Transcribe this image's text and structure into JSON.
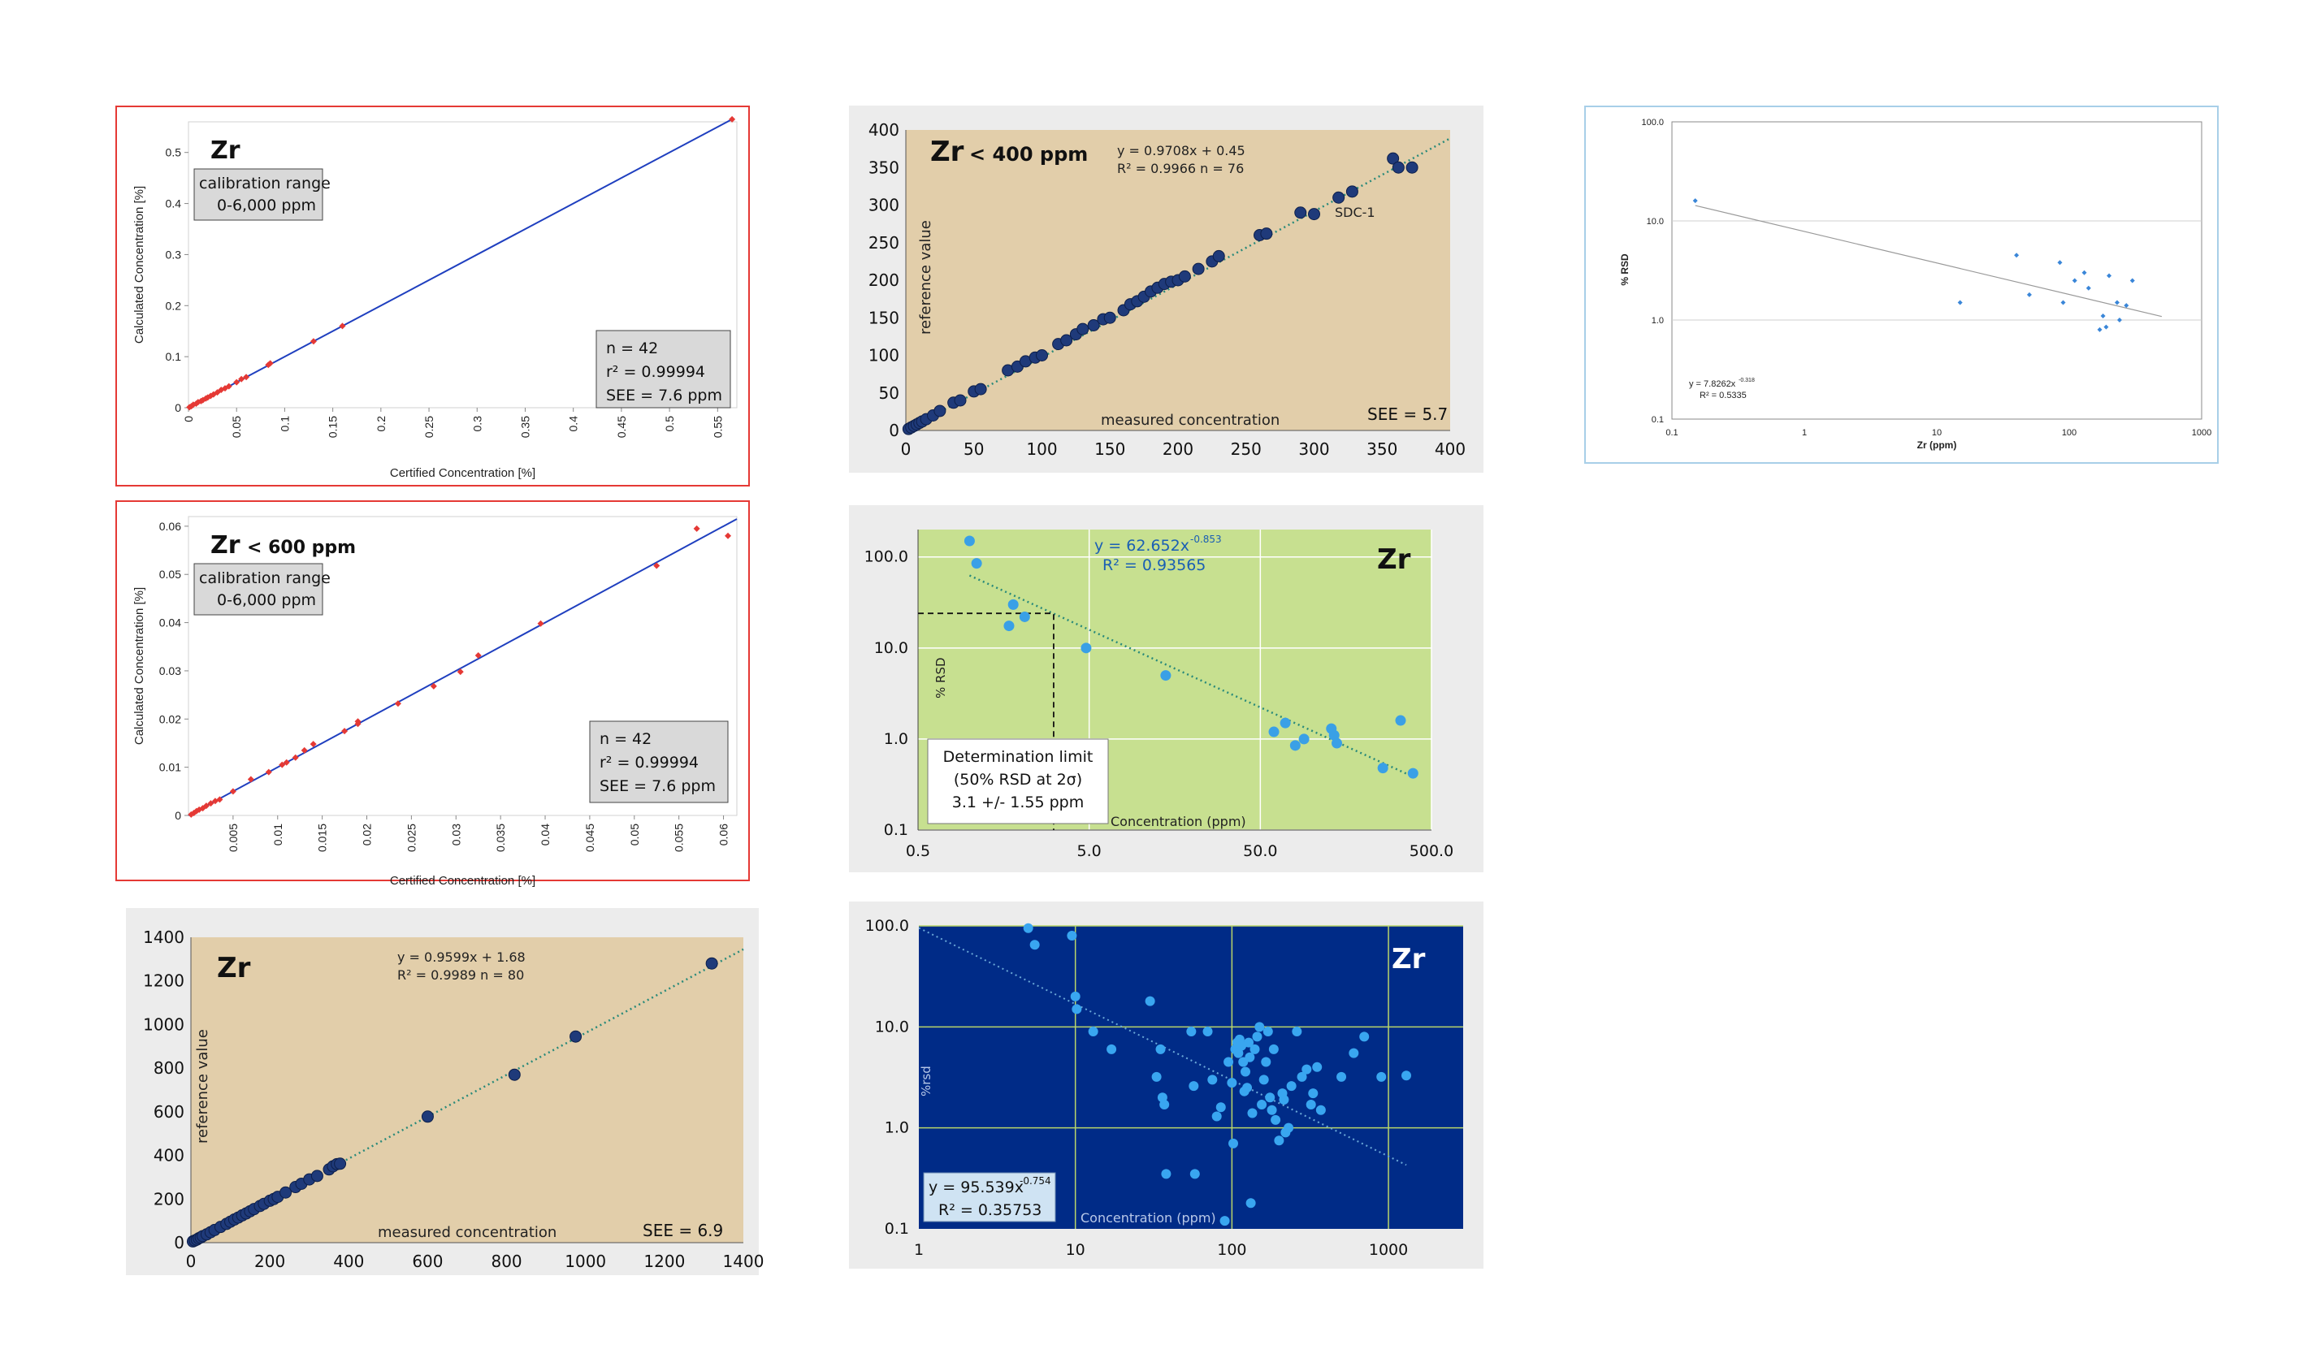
{
  "colors": {
    "red_marker": "#e53935",
    "blue_line": "#1f3fbf",
    "tan_bg": "#e2ceaa",
    "navy_point": "#1f3a7a",
    "green_bg": "#c7e090",
    "light_blue_point": "#3aa0e6",
    "dark_blue_bg": "#002b87",
    "teal_trend": "#2a8a7a"
  },
  "chart_data": [
    {
      "id": "p1",
      "type": "scatter",
      "title": "Zr",
      "calibration_box": [
        "calibration range",
        "0-6,000 ppm"
      ],
      "stats_box": [
        "n = 42",
        "r² = 0.99994",
        "SEE = 7.6 ppm"
      ],
      "xlabel": "Certified Concentration [%]",
      "ylabel": "Calculated Concentration [%]",
      "xlim": [
        0,
        0.57
      ],
      "ylim": [
        0,
        0.56
      ],
      "xticks": [
        "0",
        "0.05",
        "0.1",
        "0.15",
        "0.2",
        "0.25",
        "0.3",
        "0.35",
        "0.4",
        "0.45",
        "0.5",
        "0.55"
      ],
      "yticks": [
        "0",
        "0.1",
        "0.2",
        "0.3",
        "0.4",
        "0.5"
      ],
      "trendline": [
        [
          0,
          0
        ],
        [
          0.565,
          0.565
        ]
      ],
      "points": [
        [
          0.001,
          0.001
        ],
        [
          0.003,
          0.003
        ],
        [
          0.005,
          0.006
        ],
        [
          0.008,
          0.008
        ],
        [
          0.01,
          0.011
        ],
        [
          0.013,
          0.013
        ],
        [
          0.015,
          0.015
        ],
        [
          0.018,
          0.018
        ],
        [
          0.02,
          0.02
        ],
        [
          0.023,
          0.023
        ],
        [
          0.026,
          0.026
        ],
        [
          0.03,
          0.03
        ],
        [
          0.034,
          0.035
        ],
        [
          0.038,
          0.038
        ],
        [
          0.042,
          0.042
        ],
        [
          0.05,
          0.05
        ],
        [
          0.055,
          0.056
        ],
        [
          0.06,
          0.06
        ],
        [
          0.083,
          0.084
        ],
        [
          0.085,
          0.087
        ],
        [
          0.13,
          0.13
        ],
        [
          0.16,
          0.16
        ],
        [
          0.565,
          0.565
        ]
      ]
    },
    {
      "id": "p2",
      "type": "scatter",
      "title": "Zr",
      "subtitle": "< 600 ppm",
      "calibration_box": [
        "calibration range",
        "0-6,000 ppm"
      ],
      "stats_box": [
        "n = 42",
        "r² = 0.99994",
        "SEE = 7.6 ppm"
      ],
      "xlabel": "Certified Concentration [%]",
      "ylabel": "Calculated Concentration [%]",
      "xlim": [
        0,
        0.0615
      ],
      "ylim": [
        0,
        0.062
      ],
      "xticks": [
        "0.005",
        "0.01",
        "0.015",
        "0.02",
        "0.025",
        "0.03",
        "0.035",
        "0.04",
        "0.045",
        "0.05",
        "0.055",
        "0.06"
      ],
      "yticks": [
        "0",
        "0.01",
        "0.02",
        "0.03",
        "0.04",
        "0.05",
        "0.06"
      ],
      "trendline": [
        [
          0,
          0
        ],
        [
          0.0615,
          0.0615
        ]
      ],
      "points": [
        [
          0.0003,
          0.0002
        ],
        [
          0.0006,
          0.0005
        ],
        [
          0.0009,
          0.0009
        ],
        [
          0.0012,
          0.0012
        ],
        [
          0.0016,
          0.0015
        ],
        [
          0.002,
          0.002
        ],
        [
          0.0025,
          0.0025
        ],
        [
          0.003,
          0.003
        ],
        [
          0.0035,
          0.0033
        ],
        [
          0.005,
          0.005
        ],
        [
          0.007,
          0.0075
        ],
        [
          0.009,
          0.009
        ],
        [
          0.0105,
          0.0105
        ],
        [
          0.011,
          0.011
        ],
        [
          0.012,
          0.012
        ],
        [
          0.013,
          0.0135
        ],
        [
          0.014,
          0.0148
        ],
        [
          0.0175,
          0.0175
        ],
        [
          0.019,
          0.0195
        ],
        [
          0.019,
          0.019
        ],
        [
          0.0235,
          0.0232
        ],
        [
          0.0275,
          0.0268
        ],
        [
          0.0305,
          0.0298
        ],
        [
          0.0325,
          0.0332
        ],
        [
          0.0395,
          0.0398
        ],
        [
          0.0525,
          0.0518
        ],
        [
          0.057,
          0.0595
        ],
        [
          0.0605,
          0.058
        ]
      ]
    },
    {
      "id": "p3",
      "type": "scatter",
      "title": "Zr",
      "equation": [
        "y = 0.9599x + 1.68",
        "R² = 0.9989   n = 80"
      ],
      "xlabel": "measured concentration",
      "ylabel": "reference value",
      "see": "SEE = 6.9",
      "xlim": [
        0,
        1400
      ],
      "ylim": [
        0,
        1400
      ],
      "xticks": [
        "0",
        "200",
        "400",
        "600",
        "800",
        "1000",
        "1200",
        "1400"
      ],
      "yticks": [
        "0",
        "200",
        "400",
        "600",
        "800",
        "1000",
        "1200",
        "1400"
      ],
      "trendline": [
        [
          0,
          1.68
        ],
        [
          1400,
          1345
        ]
      ],
      "points": [
        [
          5,
          6
        ],
        [
          10,
          10
        ],
        [
          15,
          14
        ],
        [
          20,
          20
        ],
        [
          25,
          24
        ],
        [
          30,
          30
        ],
        [
          40,
          38
        ],
        [
          50,
          48
        ],
        [
          60,
          58
        ],
        [
          75,
          72
        ],
        [
          90,
          86
        ],
        [
          100,
          96
        ],
        [
          110,
          106
        ],
        [
          120,
          115
        ],
        [
          130,
          125
        ],
        [
          140,
          134
        ],
        [
          150,
          144
        ],
        [
          160,
          154
        ],
        [
          175,
          168
        ],
        [
          185,
          178
        ],
        [
          200,
          192
        ],
        [
          210,
          200
        ],
        [
          220,
          210
        ],
        [
          240,
          230
        ],
        [
          265,
          255
        ],
        [
          280,
          270
        ],
        [
          300,
          290
        ],
        [
          320,
          306
        ],
        [
          350,
          336
        ],
        [
          360,
          350
        ],
        [
          370,
          360
        ],
        [
          378,
          362
        ],
        [
          600,
          578
        ],
        [
          820,
          770
        ],
        [
          975,
          945
        ],
        [
          1320,
          1280
        ]
      ]
    },
    {
      "id": "p4",
      "type": "scatter",
      "title": "Zr",
      "subtitle": "< 400 ppm",
      "equation": [
        "y = 0.9708x + 0.45",
        "R² = 0.9966   n = 76"
      ],
      "xlabel": "measured concentration",
      "ylabel": "reference value",
      "see": "SEE = 5.7",
      "annotation": "SDC-1",
      "xlim": [
        0,
        400
      ],
      "ylim": [
        0,
        400
      ],
      "xticks": [
        "0",
        "50",
        "100",
        "150",
        "200",
        "250",
        "300",
        "350",
        "400"
      ],
      "yticks": [
        "0",
        "50",
        "100",
        "150",
        "200",
        "250",
        "300",
        "350",
        "400"
      ],
      "trendline": [
        [
          0,
          0.45
        ],
        [
          400,
          388.8
        ]
      ],
      "points": [
        [
          2,
          2
        ],
        [
          4,
          4
        ],
        [
          6,
          6
        ],
        [
          8,
          8
        ],
        [
          10,
          10
        ],
        [
          12,
          12
        ],
        [
          15,
          15
        ],
        [
          20,
          20
        ],
        [
          25,
          26
        ],
        [
          35,
          37
        ],
        [
          40,
          40
        ],
        [
          50,
          52
        ],
        [
          55,
          55
        ],
        [
          75,
          80
        ],
        [
          82,
          85
        ],
        [
          88,
          92
        ],
        [
          95,
          97
        ],
        [
          100,
          100
        ],
        [
          112,
          115
        ],
        [
          118,
          120
        ],
        [
          125,
          128
        ],
        [
          130,
          135
        ],
        [
          138,
          140
        ],
        [
          145,
          148
        ],
        [
          150,
          150
        ],
        [
          160,
          160
        ],
        [
          165,
          168
        ],
        [
          170,
          172
        ],
        [
          175,
          178
        ],
        [
          180,
          185
        ],
        [
          185,
          190
        ],
        [
          190,
          195
        ],
        [
          195,
          198
        ],
        [
          200,
          200
        ],
        [
          205,
          205
        ],
        [
          215,
          215
        ],
        [
          225,
          225
        ],
        [
          230,
          232
        ],
        [
          260,
          260
        ],
        [
          265,
          262
        ],
        [
          290,
          290
        ],
        [
          300,
          288
        ],
        [
          318,
          310
        ],
        [
          328,
          318
        ],
        [
          358,
          362
        ],
        [
          362,
          350
        ],
        [
          372,
          350
        ]
      ]
    },
    {
      "id": "p5",
      "type": "scatter",
      "scale": "log-log",
      "title": "Zr",
      "equation": [
        "y = 62.652x",
        "-0.853",
        "R² = 0.93565"
      ],
      "box": [
        "Determination limit",
        "(50% RSD at 2σ)",
        "3.1 +/- 1.55 ppm"
      ],
      "xlabel": "Concentration (ppm)",
      "ylabel": "% RSD",
      "xlim": [
        0.5,
        500
      ],
      "ylim": [
        0.1,
        200
      ],
      "xticks": [
        "0.5",
        "5.0",
        "50.0",
        "500.0"
      ],
      "yticks": [
        "0.1",
        "1.0",
        "10.0",
        "100.0"
      ],
      "points": [
        [
          1.0,
          150
        ],
        [
          1.1,
          85
        ],
        [
          1.8,
          30
        ],
        [
          1.7,
          17.5
        ],
        [
          2.1,
          22
        ],
        [
          4.8,
          10
        ],
        [
          14,
          5
        ],
        [
          60,
          1.2
        ],
        [
          70,
          1.5
        ],
        [
          80,
          0.85
        ],
        [
          90,
          1.0
        ],
        [
          130,
          1.3
        ],
        [
          135,
          1.1
        ],
        [
          140,
          0.9
        ],
        [
          260,
          0.48
        ],
        [
          330,
          1.6
        ],
        [
          390,
          0.42
        ]
      ]
    },
    {
      "id": "p6",
      "type": "scatter",
      "scale": "log-log",
      "title": "Zr",
      "equation": [
        "y = 95.539x",
        "-0.754",
        "R² = 0.35753"
      ],
      "xlabel": "Concentration (ppm)",
      "ylabel": "%rsd",
      "xlim": [
        1,
        3000
      ],
      "ylim": [
        0.1,
        100
      ],
      "xticks": [
        "1",
        "10",
        "100",
        "1000"
      ],
      "yticks": [
        "0.1",
        "1.0",
        "10.0",
        "100.0"
      ],
      "points": [
        [
          5,
          95
        ],
        [
          5.5,
          65
        ],
        [
          9.5,
          80
        ],
        [
          10,
          20
        ],
        [
          10.2,
          15
        ],
        [
          13,
          9
        ],
        [
          17,
          6
        ],
        [
          30,
          18
        ],
        [
          33,
          3.2
        ],
        [
          35,
          6
        ],
        [
          36,
          2
        ],
        [
          37,
          1.7
        ],
        [
          38,
          0.35
        ],
        [
          55,
          9
        ],
        [
          57,
          2.6
        ],
        [
          58,
          0.35
        ],
        [
          70,
          9
        ],
        [
          75,
          3
        ],
        [
          80,
          1.3
        ],
        [
          85,
          1.6
        ],
        [
          90,
          0.12
        ],
        [
          95,
          4.5
        ],
        [
          100,
          2.8
        ],
        [
          102,
          0.7
        ],
        [
          105,
          6
        ],
        [
          108,
          7
        ],
        [
          110,
          5.5
        ],
        [
          112,
          7.5
        ],
        [
          115,
          6.5
        ],
        [
          118,
          4.5
        ],
        [
          120,
          2.3
        ],
        [
          122,
          3.6
        ],
        [
          125,
          2.5
        ],
        [
          128,
          7
        ],
        [
          130,
          5
        ],
        [
          132,
          0.18
        ],
        [
          135,
          1.4
        ],
        [
          140,
          6
        ],
        [
          145,
          8
        ],
        [
          150,
          10
        ],
        [
          155,
          1.7
        ],
        [
          160,
          3
        ],
        [
          165,
          4.5
        ],
        [
          170,
          9
        ],
        [
          175,
          2
        ],
        [
          180,
          1.5
        ],
        [
          185,
          6
        ],
        [
          190,
          1.2
        ],
        [
          200,
          0.75
        ],
        [
          210,
          2.2
        ],
        [
          215,
          1.9
        ],
        [
          220,
          0.9
        ],
        [
          230,
          1.0
        ],
        [
          240,
          2.6
        ],
        [
          260,
          9
        ],
        [
          280,
          3.2
        ],
        [
          300,
          3.8
        ],
        [
          320,
          1.7
        ],
        [
          330,
          2.2
        ],
        [
          350,
          4
        ],
        [
          370,
          1.5
        ],
        [
          500,
          3.2
        ],
        [
          600,
          5.5
        ],
        [
          700,
          8
        ],
        [
          900,
          3.2
        ],
        [
          1300,
          3.3
        ]
      ]
    },
    {
      "id": "p7",
      "type": "scatter",
      "scale": "log-log",
      "equation": [
        "y = 7.8262x",
        "-0.318",
        "R² = 0.5335"
      ],
      "xlabel": "Zr (ppm)",
      "ylabel": "% RSD",
      "xlim": [
        0.1,
        1000
      ],
      "ylim": [
        0.1,
        100
      ],
      "xticks": [
        "0.1",
        "1",
        "10",
        "100",
        "1000"
      ],
      "yticks": [
        "0.1",
        "1.0",
        "10.0",
        "100.0"
      ],
      "points": [
        [
          0.15,
          16
        ],
        [
          15,
          1.5
        ],
        [
          40,
          4.5
        ],
        [
          50,
          1.8
        ],
        [
          85,
          3.8
        ],
        [
          90,
          1.5
        ],
        [
          110,
          2.5
        ],
        [
          130,
          3
        ],
        [
          140,
          2.1
        ],
        [
          170,
          0.8
        ],
        [
          180,
          1.1
        ],
        [
          190,
          0.85
        ],
        [
          200,
          2.8
        ],
        [
          230,
          1.5
        ],
        [
          240,
          1.0
        ],
        [
          270,
          1.4
        ],
        [
          300,
          2.5
        ]
      ]
    }
  ]
}
